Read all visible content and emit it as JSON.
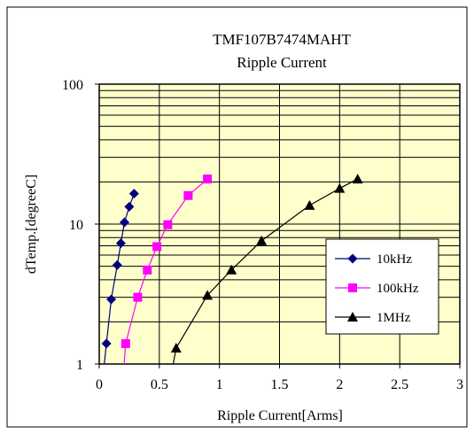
{
  "chart_data": {
    "type": "line",
    "title": "TMF107B7474MAHT",
    "subtitle": "Ripple Current",
    "xlabel": "Ripple Current[Arms]",
    "ylabel": "dTemp.[degreeC]",
    "xlim": [
      0,
      3
    ],
    "ylim": [
      1,
      100
    ],
    "y_scale": "log",
    "x_ticks": [
      "0",
      "0.5",
      "1",
      "1.5",
      "2",
      "2.5",
      "3"
    ],
    "y_ticks": [
      "1",
      "10",
      "100"
    ],
    "grid": true,
    "legend_position": "right",
    "plot_background": "#ffffcc",
    "series": [
      {
        "name": "10kHz",
        "color": "#000080",
        "marker": "diamond",
        "x": [
          0.03,
          0.06,
          0.1,
          0.15,
          0.18,
          0.21,
          0.25,
          0.29
        ],
        "y": [
          0.8,
          1.4,
          2.9,
          5.1,
          7.3,
          10.3,
          13.3,
          16.5
        ]
      },
      {
        "name": "100kHz",
        "color": "#ff00ff",
        "marker": "square",
        "x": [
          0.2,
          0.22,
          0.32,
          0.4,
          0.48,
          0.57,
          0.74,
          0.9
        ],
        "y": [
          0.85,
          1.4,
          3.0,
          4.7,
          6.9,
          9.9,
          16.0,
          21.0
        ]
      },
      {
        "name": "1MHz",
        "color": "#000000",
        "marker": "triangle",
        "x": [
          0.6,
          0.64,
          0.9,
          1.1,
          1.35,
          1.75,
          2.0,
          2.15
        ],
        "y": [
          0.85,
          1.3,
          3.1,
          4.7,
          7.6,
          13.6,
          18.0,
          21.0
        ]
      }
    ]
  }
}
